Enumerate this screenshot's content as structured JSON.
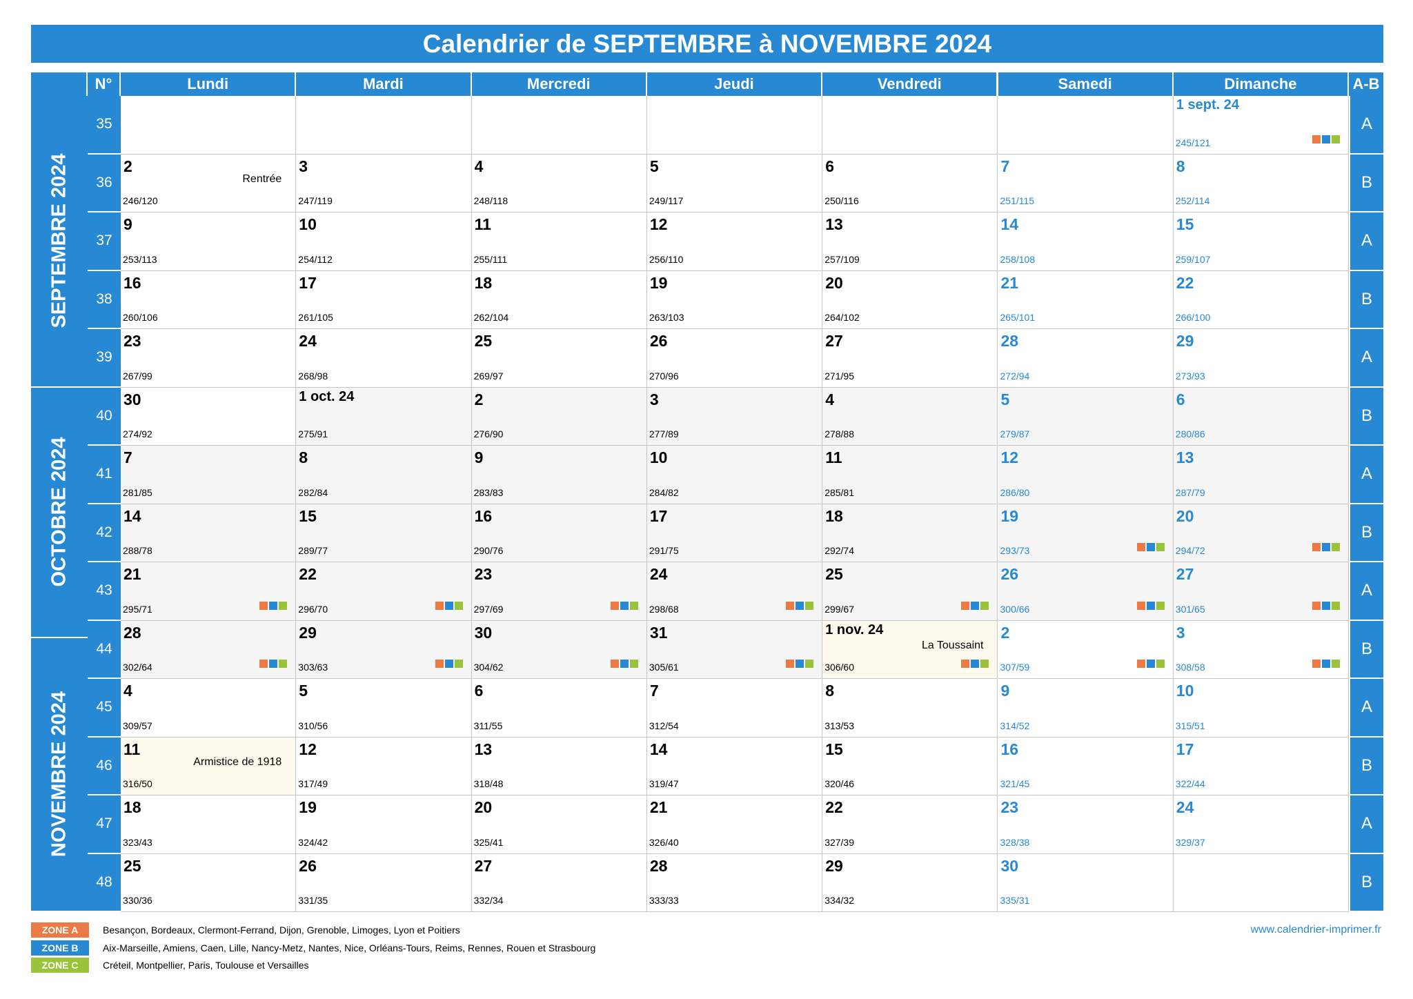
{
  "title": "Calendrier de SEPTEMBRE à NOVEMBRE 2024",
  "headers": {
    "num": "N°",
    "ab": "A-B",
    "days": [
      "Lundi",
      "Mardi",
      "Mercredi",
      "Jeudi",
      "Vendredi",
      "Samedi",
      "Dimanche"
    ]
  },
  "months": [
    "SEPTEMBRE 2024",
    "OCTOBRE 2024",
    "NOVEMBRE 2024"
  ],
  "weeks": [
    {
      "n": "35",
      "ab": "A",
      "days": [
        null,
        null,
        null,
        null,
        null,
        null,
        {
          "d": "1 sept. 24",
          "y": "245/121",
          "z": true
        }
      ]
    },
    {
      "n": "36",
      "ab": "B",
      "days": [
        {
          "d": "2",
          "y": "246/120",
          "note": "Rentrée"
        },
        {
          "d": "3",
          "y": "247/119"
        },
        {
          "d": "4",
          "y": "248/118"
        },
        {
          "d": "5",
          "y": "249/117"
        },
        {
          "d": "6",
          "y": "250/116"
        },
        {
          "d": "7",
          "y": "251/115"
        },
        {
          "d": "8",
          "y": "252/114"
        }
      ]
    },
    {
      "n": "37",
      "ab": "A",
      "days": [
        {
          "d": "9",
          "y": "253/113"
        },
        {
          "d": "10",
          "y": "254/112"
        },
        {
          "d": "11",
          "y": "255/111"
        },
        {
          "d": "12",
          "y": "256/110"
        },
        {
          "d": "13",
          "y": "257/109"
        },
        {
          "d": "14",
          "y": "258/108"
        },
        {
          "d": "15",
          "y": "259/107"
        }
      ]
    },
    {
      "n": "38",
      "ab": "B",
      "days": [
        {
          "d": "16",
          "y": "260/106"
        },
        {
          "d": "17",
          "y": "261/105"
        },
        {
          "d": "18",
          "y": "262/104"
        },
        {
          "d": "19",
          "y": "263/103"
        },
        {
          "d": "20",
          "y": "264/102"
        },
        {
          "d": "21",
          "y": "265/101"
        },
        {
          "d": "22",
          "y": "266/100"
        }
      ]
    },
    {
      "n": "39",
      "ab": "A",
      "days": [
        {
          "d": "23",
          "y": "267/99"
        },
        {
          "d": "24",
          "y": "268/98"
        },
        {
          "d": "25",
          "y": "269/97"
        },
        {
          "d": "26",
          "y": "270/96"
        },
        {
          "d": "27",
          "y": "271/95"
        },
        {
          "d": "28",
          "y": "272/94"
        },
        {
          "d": "29",
          "y": "273/93"
        }
      ]
    },
    {
      "n": "40",
      "ab": "B",
      "days": [
        {
          "d": "30",
          "y": "274/92"
        },
        {
          "d": "1 oct. 24",
          "y": "275/91",
          "oct": true
        },
        {
          "d": "2",
          "y": "276/90",
          "oct": true
        },
        {
          "d": "3",
          "y": "277/89",
          "oct": true
        },
        {
          "d": "4",
          "y": "278/88",
          "oct": true
        },
        {
          "d": "5",
          "y": "279/87",
          "oct": true
        },
        {
          "d": "6",
          "y": "280/86",
          "oct": true
        }
      ]
    },
    {
      "n": "41",
      "ab": "A",
      "days": [
        {
          "d": "7",
          "y": "281/85",
          "oct": true
        },
        {
          "d": "8",
          "y": "282/84",
          "oct": true
        },
        {
          "d": "9",
          "y": "283/83",
          "oct": true
        },
        {
          "d": "10",
          "y": "284/82",
          "oct": true
        },
        {
          "d": "11",
          "y": "285/81",
          "oct": true
        },
        {
          "d": "12",
          "y": "286/80",
          "oct": true
        },
        {
          "d": "13",
          "y": "287/79",
          "oct": true
        }
      ]
    },
    {
      "n": "42",
      "ab": "B",
      "days": [
        {
          "d": "14",
          "y": "288/78",
          "oct": true
        },
        {
          "d": "15",
          "y": "289/77",
          "oct": true
        },
        {
          "d": "16",
          "y": "290/76",
          "oct": true
        },
        {
          "d": "17",
          "y": "291/75",
          "oct": true
        },
        {
          "d": "18",
          "y": "292/74",
          "oct": true
        },
        {
          "d": "19",
          "y": "293/73",
          "oct": true,
          "z": true
        },
        {
          "d": "20",
          "y": "294/72",
          "oct": true,
          "z": true
        }
      ]
    },
    {
      "n": "43",
      "ab": "A",
      "days": [
        {
          "d": "21",
          "y": "295/71",
          "oct": true,
          "z": true
        },
        {
          "d": "22",
          "y": "296/70",
          "oct": true,
          "z": true
        },
        {
          "d": "23",
          "y": "297/69",
          "oct": true,
          "z": true
        },
        {
          "d": "24",
          "y": "298/68",
          "oct": true,
          "z": true
        },
        {
          "d": "25",
          "y": "299/67",
          "oct": true,
          "z": true
        },
        {
          "d": "26",
          "y": "300/66",
          "oct": true,
          "z": true
        },
        {
          "d": "27",
          "y": "301/65",
          "oct": true,
          "z": true
        }
      ]
    },
    {
      "n": "44",
      "ab": "B",
      "days": [
        {
          "d": "28",
          "y": "302/64",
          "oct": true,
          "z": true
        },
        {
          "d": "29",
          "y": "303/63",
          "oct": true,
          "z": true
        },
        {
          "d": "30",
          "y": "304/62",
          "oct": true,
          "z": true
        },
        {
          "d": "31",
          "y": "305/61",
          "oct": true,
          "z": true
        },
        {
          "d": "1 nov. 24",
          "y": "306/60",
          "note": "La Toussaint",
          "hol": true,
          "z": true
        },
        {
          "d": "2",
          "y": "307/59",
          "z": true
        },
        {
          "d": "3",
          "y": "308/58",
          "z": true
        }
      ]
    },
    {
      "n": "45",
      "ab": "A",
      "days": [
        {
          "d": "4",
          "y": "309/57"
        },
        {
          "d": "5",
          "y": "310/56"
        },
        {
          "d": "6",
          "y": "311/55"
        },
        {
          "d": "7",
          "y": "312/54"
        },
        {
          "d": "8",
          "y": "313/53"
        },
        {
          "d": "9",
          "y": "314/52"
        },
        {
          "d": "10",
          "y": "315/51"
        }
      ]
    },
    {
      "n": "46",
      "ab": "B",
      "days": [
        {
          "d": "11",
          "y": "316/50",
          "note": "Armistice de 1918",
          "hol": true
        },
        {
          "d": "12",
          "y": "317/49"
        },
        {
          "d": "13",
          "y": "318/48"
        },
        {
          "d": "14",
          "y": "319/47"
        },
        {
          "d": "15",
          "y": "320/46"
        },
        {
          "d": "16",
          "y": "321/45"
        },
        {
          "d": "17",
          "y": "322/44"
        }
      ]
    },
    {
      "n": "47",
      "ab": "A",
      "days": [
        {
          "d": "18",
          "y": "323/43"
        },
        {
          "d": "19",
          "y": "324/42"
        },
        {
          "d": "20",
          "y": "325/41"
        },
        {
          "d": "21",
          "y": "326/40"
        },
        {
          "d": "22",
          "y": "327/39"
        },
        {
          "d": "23",
          "y": "328/38"
        },
        {
          "d": "24",
          "y": "329/37"
        }
      ]
    },
    {
      "n": "48",
      "ab": "B",
      "days": [
        {
          "d": "25",
          "y": "330/36"
        },
        {
          "d": "26",
          "y": "331/35"
        },
        {
          "d": "27",
          "y": "332/34"
        },
        {
          "d": "28",
          "y": "333/33"
        },
        {
          "d": "29",
          "y": "334/32"
        },
        {
          "d": "30",
          "y": "335/31"
        },
        null
      ]
    }
  ],
  "zones": [
    {
      "label": "ZONE A",
      "color": "#ec7a45",
      "text": "Besançon, Bordeaux, Clermont-Ferrand, Dijon, Grenoble, Limoges, Lyon et Poitiers"
    },
    {
      "label": "ZONE B",
      "color": "#2789d3",
      "text": "Aix-Marseille, Amiens, Caen, Lille, Nancy-Metz, Nantes, Nice, Orléans-Tours, Reims, Rennes, Rouen et Strasbourg"
    },
    {
      "label": "ZONE C",
      "color": "#9ac33c",
      "text": "Créteil, Montpellier, Paris, Toulouse et Versailles"
    }
  ],
  "website": "www.calendrier-imprimer.fr"
}
